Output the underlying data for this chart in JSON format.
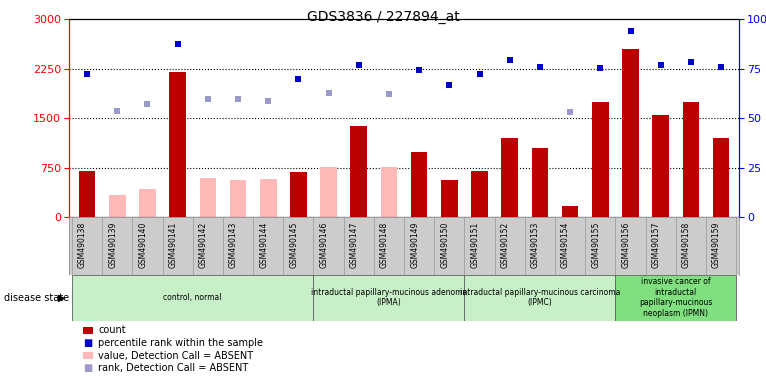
{
  "title": "GDS3836 / 227894_at",
  "samples": [
    "GSM490138",
    "GSM490139",
    "GSM490140",
    "GSM490141",
    "GSM490142",
    "GSM490143",
    "GSM490144",
    "GSM490145",
    "GSM490146",
    "GSM490147",
    "GSM490148",
    "GSM490149",
    "GSM490150",
    "GSM490151",
    "GSM490152",
    "GSM490153",
    "GSM490154",
    "GSM490155",
    "GSM490156",
    "GSM490157",
    "GSM490158",
    "GSM490159"
  ],
  "count_present": [
    700,
    null,
    null,
    2200,
    null,
    null,
    null,
    680,
    null,
    1380,
    null,
    980,
    560,
    700,
    1200,
    1050,
    160,
    1750,
    2550,
    1550,
    1750,
    1200
  ],
  "count_absent": [
    null,
    330,
    430,
    null,
    590,
    560,
    580,
    null,
    760,
    null,
    760,
    null,
    null,
    null,
    null,
    null,
    null,
    null,
    null,
    null,
    null,
    null
  ],
  "rank_present": [
    2170,
    null,
    null,
    2620,
    null,
    null,
    null,
    2100,
    null,
    2300,
    null,
    2230,
    2000,
    2170,
    2380,
    2270,
    null,
    2260,
    2820,
    2300,
    2350,
    2280
  ],
  "rank_absent": [
    null,
    1600,
    1720,
    null,
    1790,
    1790,
    1760,
    null,
    1880,
    null,
    1870,
    null,
    null,
    null,
    null,
    null,
    1590,
    null,
    null,
    null,
    null,
    null
  ],
  "groups": [
    {
      "label": "control, normal",
      "start": 0,
      "end": 8
    },
    {
      "label": "intraductal papillary-mucinous adenoma\n(IPMA)",
      "start": 8,
      "end": 13
    },
    {
      "label": "intraductal papillary-mucinous carcinoma\n(IPMC)",
      "start": 13,
      "end": 18
    },
    {
      "label": "invasive cancer of\nintraductal\npapillary-mucinous\nneoplasm (IPMN)",
      "start": 18,
      "end": 22
    }
  ],
  "group_colors": [
    "#c8f0c8",
    "#c8f0c8",
    "#c8f0c8",
    "#80e080"
  ],
  "yticks_left": [
    0,
    750,
    1500,
    2250,
    3000
  ],
  "yticks_right": [
    0,
    25,
    50,
    75,
    100
  ],
  "bar_color_present": "#bb0000",
  "bar_color_absent": "#ffb8b8",
  "dot_color_present": "#0000cc",
  "dot_color_absent": "#9999cc",
  "tick_bg": "#cccccc",
  "bar_width": 0.55,
  "dot_size": 5
}
